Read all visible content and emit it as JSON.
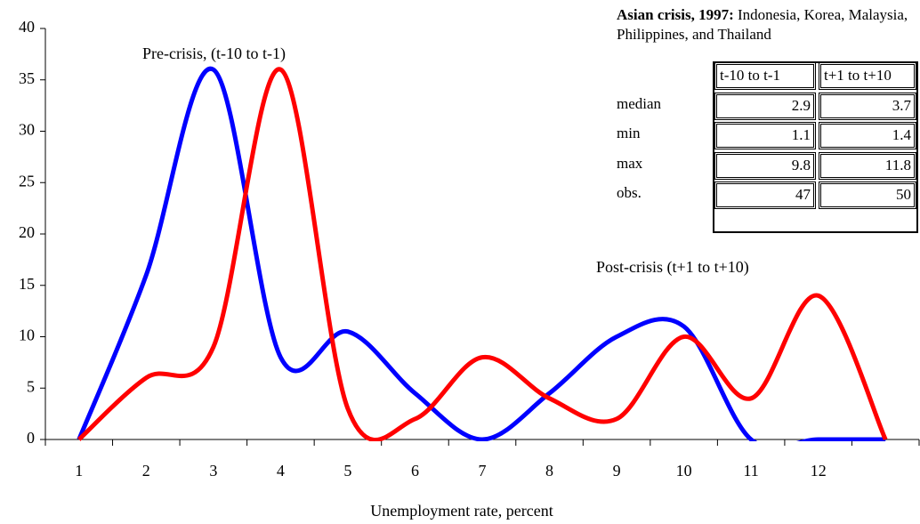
{
  "chart_data": {
    "type": "line",
    "xlabel": "Unemployment rate, percent",
    "categories": [
      "1",
      "2",
      "3",
      "4",
      "5",
      "6",
      "7",
      "8",
      "9",
      "10",
      "11",
      "12",
      null
    ],
    "series": [
      {
        "color": "#0000ff",
        "values": [
          0,
          16,
          36,
          8,
          10.5,
          4.5,
          0,
          4.5,
          10,
          11,
          0,
          0,
          0
        ]
      },
      {
        "color": "#ff0000",
        "values": [
          0,
          6,
          9,
          36,
          3,
          2,
          8,
          4,
          2,
          10,
          4,
          14,
          0
        ]
      }
    ],
    "ylim": [
      0,
      40
    ],
    "yticks": [
      0,
      5,
      10,
      15,
      20,
      25,
      30,
      35,
      40
    ],
    "annotations": [
      "Pre-crisis, (t-10 to t-1)",
      "Post-crisis (t+1 to t+10)"
    ],
    "table": {
      "title": "Asian crisis, 1997:",
      "subtitle": "Indonesia, Korea, Malaysia, Philippines, and Thailand",
      "columns": [
        "t-10 to t-1",
        "t+1 to t+10"
      ],
      "rows": [
        {
          "label": "median",
          "values": [
            2.9,
            3.7
          ]
        },
        {
          "label": "min",
          "values": [
            1.1,
            1.4
          ]
        },
        {
          "label": "max",
          "values": [
            9.8,
            11.8
          ]
        },
        {
          "label": "obs.",
          "values": [
            47,
            50
          ]
        }
      ]
    }
  }
}
